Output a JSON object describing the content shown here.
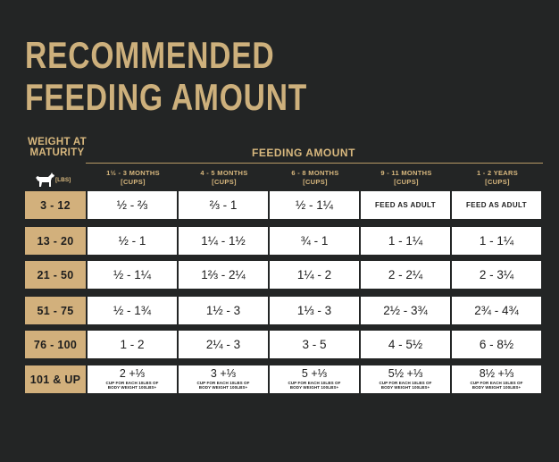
{
  "title": {
    "line1": "RECOMMENDED",
    "line2": "FEEDING AMOUNT"
  },
  "weight_header": {
    "line1": "WEIGHT AT",
    "line2": "MATURITY",
    "unit": "[LBS]"
  },
  "feeding_header": "FEEDING AMOUNT",
  "columns": [
    {
      "label": "1½ - 3 MONTHS",
      "unit": "[CUPS]"
    },
    {
      "label": "4 - 5 MONTHS",
      "unit": "[CUPS]"
    },
    {
      "label": "6 - 8 MONTHS",
      "unit": "[CUPS]"
    },
    {
      "label": "9 - 11 MONTHS",
      "unit": "[CUPS]"
    },
    {
      "label": "1 - 2 YEARS",
      "unit": "[CUPS]"
    }
  ],
  "rows": [
    {
      "weight": "3 - 12",
      "values": [
        "½ - ⅔",
        "⅔ - 1",
        "½ - 1¼",
        "FEED AS ADULT",
        "FEED AS ADULT"
      ]
    },
    {
      "weight": "13 - 20",
      "values": [
        "½ - 1",
        "1¼ - 1½",
        "¾ - 1",
        "1 - 1¼",
        "1 - 1¼"
      ]
    },
    {
      "weight": "21 - 50",
      "values": [
        "½ - 1¼",
        "1⅔ - 2¼",
        "1¼ - 2",
        "2 - 2¼",
        "2 - 3¼"
      ]
    },
    {
      "weight": "51 - 75",
      "values": [
        "½ - 1¾",
        "1½ - 3",
        "1⅓ - 3",
        "2½ - 3¾",
        "2¾ - 4¾"
      ]
    },
    {
      "weight": "76 - 100",
      "values": [
        "1 - 2",
        "2¼ - 3",
        "3 - 5",
        "4 - 5½",
        "6 - 8½"
      ]
    },
    {
      "weight": "101 & UP",
      "values": [
        "2 +⅓",
        "3 +⅓",
        "5 +⅓",
        "5½ +⅓",
        "8½ +⅓"
      ]
    }
  ],
  "overflow_note": {
    "line1": "CUP FOR EACH 10LBS OF",
    "line2": "BODY WEIGHT 100LBS+"
  },
  "icons": {
    "dog": "dog-silhouette-icon"
  },
  "colors": {
    "background": "#232525",
    "gold": "#cdb07c",
    "label_bg": "#d2b07c",
    "cell_bg": "#ffffff"
  }
}
